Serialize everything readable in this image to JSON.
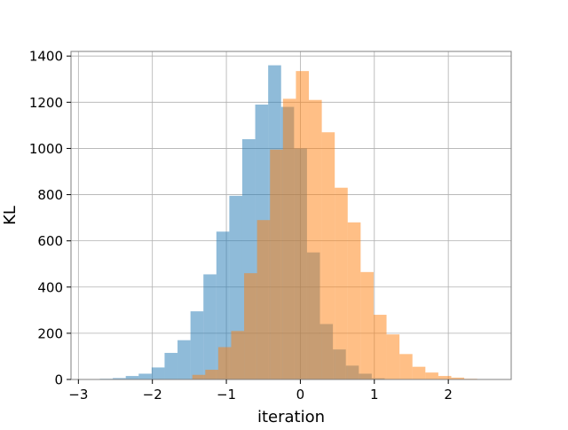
{
  "chart_data": {
    "type": "histogram",
    "title": "",
    "xlabel": "iteration",
    "ylabel": "KL",
    "xlim": [
      -3.1,
      2.85
    ],
    "ylim": [
      0,
      1420
    ],
    "x_ticks": [
      -3,
      -2,
      -1,
      0,
      1,
      2
    ],
    "x_tick_labels": [
      "−3",
      "−2",
      "−1",
      "0",
      "1",
      "2"
    ],
    "y_ticks": [
      0,
      200,
      400,
      600,
      800,
      1000,
      1200,
      1400
    ],
    "y_tick_labels": [
      "0",
      "200",
      "400",
      "600",
      "800",
      "1000",
      "1200",
      "1400"
    ],
    "grid": true,
    "legend": "none",
    "series": [
      {
        "color": "#1f77b4",
        "opacity": 0.5,
        "bin_edges": [
          -2.71,
          -2.535,
          -2.36,
          -2.185,
          -2.01,
          -1.835,
          -1.66,
          -1.485,
          -1.31,
          -1.135,
          -0.96,
          -0.785,
          -0.61,
          -0.435,
          -0.26,
          -0.085,
          0.09,
          0.265,
          0.44,
          0.615,
          0.79,
          0.965,
          1.14
        ],
        "counts": [
          3,
          6,
          15,
          25,
          52,
          115,
          170,
          295,
          455,
          640,
          795,
          1040,
          1190,
          1360,
          1180,
          1000,
          550,
          240,
          130,
          60,
          25,
          5
        ]
      },
      {
        "color": "#ff7f0e",
        "opacity": 0.5,
        "bin_edges": [
          -1.46,
          -1.285,
          -1.11,
          -0.935,
          -0.76,
          -0.585,
          -0.41,
          -0.235,
          -0.06,
          0.115,
          0.29,
          0.465,
          0.64,
          0.815,
          0.99,
          1.165,
          1.34,
          1.515,
          1.69,
          1.865,
          2.04,
          2.215,
          2.39
        ],
        "counts": [
          20,
          42,
          140,
          210,
          460,
          690,
          995,
          1215,
          1335,
          1210,
          1070,
          830,
          680,
          465,
          280,
          195,
          110,
          55,
          30,
          15,
          8,
          3
        ]
      }
    ]
  }
}
